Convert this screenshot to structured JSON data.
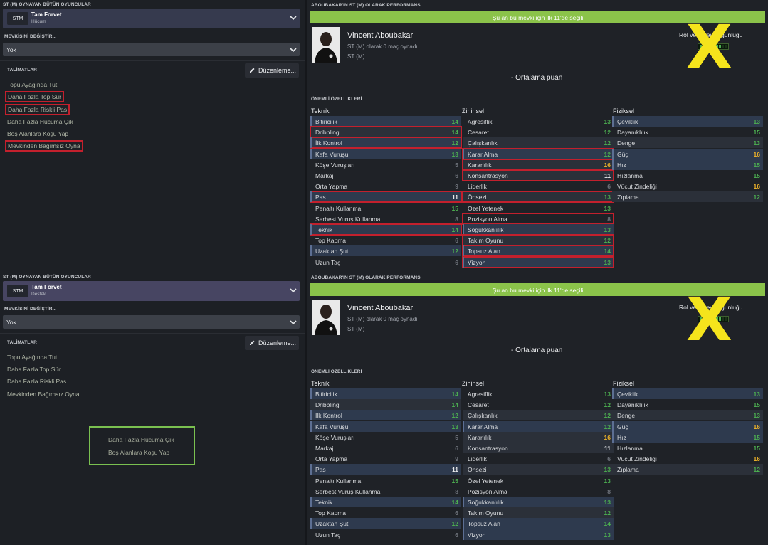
{
  "left": {
    "all_players_title": "ST (M) OYNAYAN BÜTÜN OYUNCULAR",
    "role_code": "STM",
    "role_name": "Tam Forvet",
    "change_position_title": "MEVKİSİNİ DEĞİŞTİR...",
    "change_position_value": "Yok",
    "instructions_title": "TALİMATLAR",
    "edit_button": "Düzenleme...",
    "top": {
      "duty": "Hücum",
      "instructions": [
        "Topu Ayağında Tut",
        "Daha Fazla Top Sür",
        "Daha Fazla Riskli Pas",
        "Daha Fazla Hücuma Çık",
        "Boş Alanlara Koşu Yap",
        "Mevkinden Bağımsız Oyna"
      ]
    },
    "bottom": {
      "duty": "Destek",
      "instructions": [
        "Topu Ayağında Tut",
        "Daha Fazla Top Sür",
        "Daha Fazla Riskli Pas",
        "Mevkinden Bağımsız Oyna"
      ],
      "boxed_instructions": [
        "Daha Fazla Hücuma Çık",
        "Boş Alanlara Koşu Yap"
      ]
    }
  },
  "right": {
    "performance_title": "ABOUBAKAR'IN ST (M) OLARAK PERFORMANSI",
    "selected_banner": "Şu an bu mevki için ilk 11'de seçili",
    "player_name": "Vincent Aboubakar",
    "player_sub1": "ST (M) olarak 0 maç oynadı",
    "player_sub2": "ST (M)",
    "role_suitability": "Rol ve görev uygunluğu",
    "average_rating": "- Ortalama puan",
    "key_attributes_title": "ÖNEMLİ ÖZELLİKLERİ",
    "cross_mark": "X",
    "groups": {
      "technical": "Teknik",
      "mental": "Zihinsel",
      "physical": "Fiziksel"
    }
  },
  "colors": {
    "green": "#4caf50",
    "gold": "#f0b429",
    "grey": "#6f747c",
    "white": "#e9eaec",
    "banner": "#8bc34a",
    "highlight_red": "#c3202d",
    "box_green": "#7ac050",
    "cross_yellow": "#f5e41c"
  },
  "technical": [
    {
      "n": "Bitiricilik",
      "v": 14,
      "c": "green",
      "s": "hl"
    },
    {
      "n": "Dribbling",
      "v": 14,
      "c": "green",
      "s": "alt"
    },
    {
      "n": "İlk Kontrol",
      "v": 12,
      "c": "green",
      "s": "hl"
    },
    {
      "n": "Kafa Vuruşu",
      "v": 13,
      "c": "green",
      "s": "hl"
    },
    {
      "n": "Köşe Vuruşları",
      "v": 5,
      "c": "grey",
      "s": ""
    },
    {
      "n": "Markaj",
      "v": 6,
      "c": "grey",
      "s": ""
    },
    {
      "n": "Orta Yapma",
      "v": 9,
      "c": "grey",
      "s": ""
    },
    {
      "n": "Pas",
      "v": 11,
      "c": "white",
      "s": "hl"
    },
    {
      "n": "Penaltı Kullanma",
      "v": 15,
      "c": "green",
      "s": ""
    },
    {
      "n": "Serbest Vuruş Kullanma",
      "v": 8,
      "c": "grey",
      "s": ""
    },
    {
      "n": "Teknik",
      "v": 14,
      "c": "green",
      "s": "hl"
    },
    {
      "n": "Top Kapma",
      "v": 6,
      "c": "grey",
      "s": ""
    },
    {
      "n": "Uzaktan Şut",
      "v": 12,
      "c": "green",
      "s": "hl"
    },
    {
      "n": "Uzun Taç",
      "v": 6,
      "c": "grey",
      "s": ""
    }
  ],
  "mental": [
    {
      "n": "Agresiflik",
      "v": 13,
      "c": "green",
      "s": ""
    },
    {
      "n": "Cesaret",
      "v": 12,
      "c": "green",
      "s": ""
    },
    {
      "n": "Çalışkanlık",
      "v": 12,
      "c": "green",
      "s": "alt"
    },
    {
      "n": "Karar Alma",
      "v": 12,
      "c": "green",
      "s": "hl"
    },
    {
      "n": "Kararlılık",
      "v": 16,
      "c": "gold",
      "s": "alt"
    },
    {
      "n": "Konsantrasyon",
      "v": 11,
      "c": "white",
      "s": "alt"
    },
    {
      "n": "Liderlik",
      "v": 6,
      "c": "grey",
      "s": ""
    },
    {
      "n": "Önsezi",
      "v": 13,
      "c": "green",
      "s": "alt"
    },
    {
      "n": "Özel Yetenek",
      "v": 13,
      "c": "green",
      "s": ""
    },
    {
      "n": "Pozisyon Alma",
      "v": 8,
      "c": "grey",
      "s": ""
    },
    {
      "n": "Soğukkanlılık",
      "v": 13,
      "c": "green",
      "s": "hl"
    },
    {
      "n": "Takım Oyunu",
      "v": 12,
      "c": "green",
      "s": "alt"
    },
    {
      "n": "Topsuz Alan",
      "v": 14,
      "c": "green",
      "s": "hl"
    },
    {
      "n": "Vizyon",
      "v": 13,
      "c": "green",
      "s": "hl"
    }
  ],
  "physical": [
    {
      "n": "Çeviklik",
      "v": 13,
      "c": "green",
      "s": "hl"
    },
    {
      "n": "Dayanıklılık",
      "v": 15,
      "c": "green",
      "s": ""
    },
    {
      "n": "Denge",
      "v": 13,
      "c": "green",
      "s": "alt"
    },
    {
      "n": "Güç",
      "v": 16,
      "c": "gold",
      "s": "hl"
    },
    {
      "n": "Hız",
      "v": 15,
      "c": "green",
      "s": "hl"
    },
    {
      "n": "Hızlanma",
      "v": 15,
      "c": "green",
      "s": ""
    },
    {
      "n": "Vücut Zindeliği",
      "v": 16,
      "c": "gold",
      "s": ""
    },
    {
      "n": "Zıplama",
      "v": 12,
      "c": "green",
      "s": "alt"
    }
  ],
  "top_boxed": {
    "technical": [
      1,
      2,
      7,
      10
    ],
    "mental": [
      3,
      4,
      5,
      7,
      9,
      11,
      12,
      13
    ]
  }
}
